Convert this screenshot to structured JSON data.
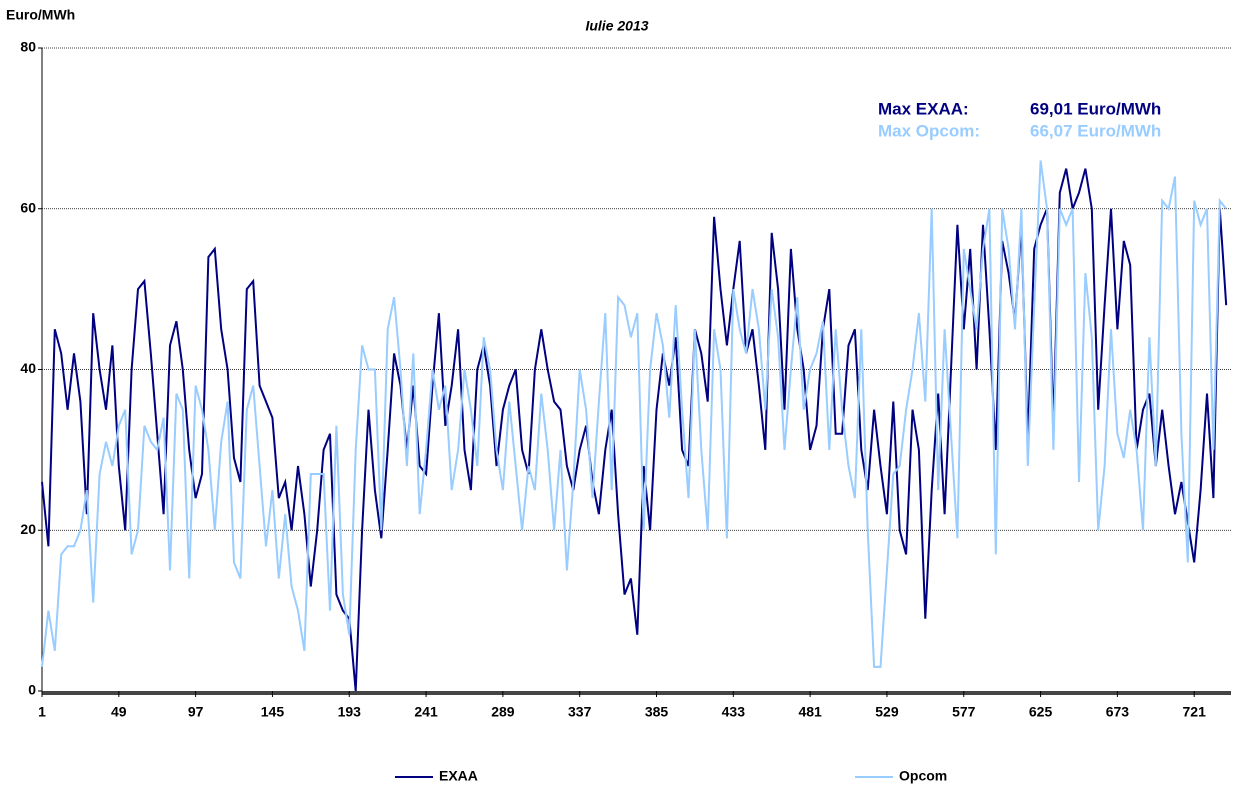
{
  "chart_data": {
    "type": "line",
    "subtitle": "Iulie 2013",
    "y_label": "Euro/MWh",
    "xlim": [
      1,
      744
    ],
    "xticks": [
      1,
      49,
      97,
      145,
      193,
      241,
      289,
      337,
      385,
      433,
      481,
      529,
      577,
      625,
      673,
      721
    ],
    "ylim": [
      0,
      80
    ],
    "yticks": [
      0,
      20,
      40,
      60,
      80
    ],
    "grid": true,
    "x": [
      1,
      5,
      9,
      13,
      17,
      21,
      25,
      29,
      33,
      37,
      41,
      45,
      49,
      53,
      57,
      61,
      65,
      69,
      73,
      77,
      81,
      85,
      89,
      93,
      97,
      101,
      105,
      109,
      113,
      117,
      121,
      125,
      129,
      133,
      137,
      141,
      145,
      149,
      153,
      157,
      161,
      165,
      169,
      173,
      177,
      181,
      185,
      189,
      193,
      197,
      201,
      205,
      209,
      213,
      217,
      221,
      225,
      229,
      233,
      237,
      241,
      245,
      249,
      253,
      257,
      261,
      265,
      269,
      273,
      277,
      281,
      285,
      289,
      293,
      297,
      301,
      305,
      309,
      313,
      317,
      321,
      325,
      329,
      333,
      337,
      341,
      345,
      349,
      353,
      357,
      361,
      365,
      369,
      373,
      377,
      381,
      385,
      389,
      393,
      397,
      401,
      405,
      409,
      413,
      417,
      421,
      425,
      429,
      433,
      437,
      441,
      445,
      449,
      453,
      457,
      461,
      465,
      469,
      473,
      477,
      481,
      485,
      489,
      493,
      497,
      501,
      505,
      509,
      513,
      517,
      521,
      525,
      529,
      533,
      537,
      541,
      545,
      549,
      553,
      557,
      561,
      565,
      569,
      573,
      577,
      581,
      585,
      589,
      593,
      597,
      601,
      605,
      609,
      613,
      617,
      621,
      625,
      629,
      633,
      637,
      641,
      645,
      649,
      653,
      657,
      661,
      665,
      669,
      673,
      677,
      681,
      685,
      689,
      693,
      697,
      701,
      705,
      709,
      713,
      717,
      721,
      725,
      729,
      733,
      737,
      741
    ],
    "series": [
      {
        "name": "EXAA",
        "color": "#000080",
        "values": [
          26,
          18,
          45,
          42,
          35,
          42,
          36,
          22,
          47,
          40,
          35,
          43,
          28,
          20,
          40,
          50,
          51,
          42,
          32,
          22,
          43,
          46,
          40,
          30,
          24,
          27,
          54,
          55,
          45,
          40,
          29,
          26,
          50,
          51,
          38,
          36,
          34,
          24,
          26,
          20,
          28,
          22,
          13,
          20,
          30,
          32,
          12,
          10,
          9,
          0,
          20,
          35,
          25,
          19,
          30,
          42,
          38,
          30,
          38,
          28,
          27,
          38,
          47,
          33,
          38,
          45,
          30,
          25,
          40,
          43,
          38,
          28,
          35,
          38,
          40,
          30,
          27,
          40,
          45,
          40,
          36,
          35,
          28,
          25,
          30,
          33,
          26,
          22,
          30,
          35,
          22,
          12,
          14,
          7,
          28,
          20,
          35,
          42,
          38,
          44,
          30,
          28,
          45,
          42,
          36,
          59,
          50,
          43,
          50,
          56,
          42,
          45,
          38,
          30,
          57,
          50,
          35,
          55,
          45,
          40,
          30,
          33,
          45,
          50,
          32,
          32,
          43,
          45,
          30,
          25,
          35,
          28,
          22,
          36,
          20,
          17,
          35,
          30,
          9,
          25,
          37,
          22,
          40,
          58,
          45,
          55,
          40,
          58,
          45,
          30,
          56,
          52,
          46,
          58,
          31,
          55,
          58,
          60,
          33,
          62,
          65,
          60,
          62,
          65,
          60,
          35,
          48,
          60,
          45,
          56,
          53,
          30,
          35,
          37,
          28,
          35,
          28,
          22,
          26,
          21,
          16,
          25,
          37,
          24,
          60,
          48
        ]
      },
      {
        "name": "Opcom",
        "color": "#99ccff",
        "values": [
          3,
          10,
          5,
          17,
          18,
          18,
          20,
          25,
          11,
          27,
          31,
          28,
          33,
          35,
          17,
          20,
          33,
          31,
          30,
          34,
          15,
          37,
          35,
          14,
          38,
          35,
          30,
          20,
          31,
          36,
          16,
          14,
          35,
          38,
          28,
          18,
          25,
          14,
          22,
          13,
          10,
          5,
          27,
          27,
          27,
          10,
          33,
          12,
          7,
          30,
          43,
          40,
          40,
          20,
          45,
          49,
          40,
          28,
          42,
          22,
          30,
          40,
          35,
          38,
          25,
          30,
          40,
          35,
          28,
          44,
          40,
          30,
          25,
          36,
          28,
          20,
          28,
          25,
          37,
          30,
          20,
          30,
          15,
          26,
          40,
          35,
          24,
          36,
          47,
          25,
          49,
          48,
          44,
          47,
          20,
          40,
          47,
          43,
          34,
          48,
          35,
          24,
          45,
          30,
          20,
          45,
          40,
          19,
          50,
          45,
          42,
          50,
          45,
          35,
          50,
          44,
          30,
          40,
          49,
          35,
          40,
          42,
          46,
          30,
          45,
          35,
          28,
          24,
          45,
          20,
          3,
          3,
          15,
          27,
          28,
          35,
          40,
          47,
          36,
          60,
          25,
          45,
          32,
          19,
          55,
          50,
          45,
          55,
          60,
          17,
          60,
          55,
          45,
          60,
          28,
          48,
          66,
          60,
          30,
          60,
          58,
          60,
          26,
          52,
          44,
          20,
          28,
          45,
          32,
          29,
          35,
          30,
          20,
          44,
          28,
          61,
          60,
          64,
          32,
          16,
          61,
          58,
          60,
          30,
          61,
          60
        ]
      }
    ],
    "annotations": [
      {
        "label": "Max EXAA:",
        "text": "69,01 Euro/MWh",
        "color": "#000080"
      },
      {
        "label": "Max Opcom:",
        "text": "66,07 Euro/MWh",
        "color": "#99ccff"
      }
    ]
  }
}
